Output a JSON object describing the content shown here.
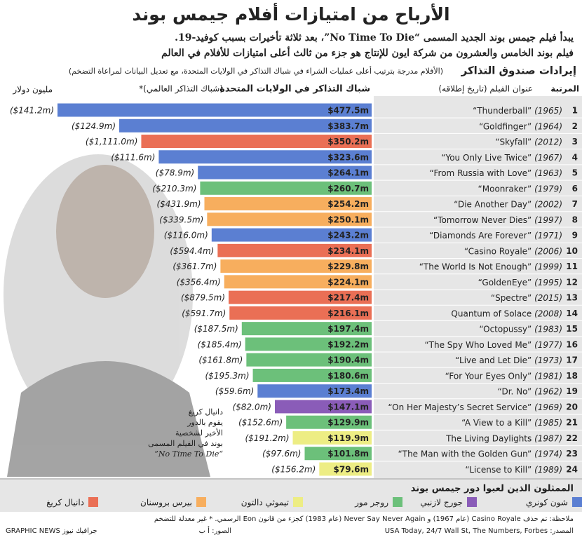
{
  "chart_data": {
    "type": "bar",
    "title": "الأرباح من امتيازات أفلام جيمس بوند",
    "subtitle": [
      "يبدأ فيلم جيمس بوند الجديد المسمى “No Time To Die”، بعد ثلاثة تأخيرات بسبب كوفيد-19.",
      "فيلم بوند الخامس والعشرون من شركة ايون للإنتاج هو جزء من ثالث أعلى امتيازات للأفلام في العالم"
    ],
    "section_title": "إيرادات صندوق التذاكر",
    "section_note": "(الأفلام مدرجة بترتيب أعلى عمليات الشراء في شباك التذاكر في الولايات المتحدة، مع تعديل البيانات لمراعاة التضخم)",
    "unit": "مليون دولار",
    "value_header": "شباك التذاكر في الولايات المتحدة",
    "worldwide_header": "(شباك التذاكر العالمي)*",
    "title_header": "عنوان الفيلم (تاريخ إطلاقه)",
    "rank_header": "المرتبة",
    "ranks": [
      "1",
      "2",
      "3",
      "4",
      "5",
      "6",
      "7",
      "8",
      "9",
      "10",
      "11",
      "12",
      "13",
      "14",
      "15",
      "16",
      "17",
      "18",
      "19",
      "20",
      "21",
      "22",
      "23",
      "24"
    ],
    "categories": [
      "“Thunderball”",
      "“Goldfinger”",
      "“Skyfall”",
      "“You Only Live Twice”",
      "“From Russia with Love”",
      "“Moonraker”",
      "“Die Another Day”",
      "“Tomorrow Never Dies”",
      "“Diamonds Are Forever”",
      "“Casino Royale”",
      "“The World Is Not Enough”",
      "“GoldenEye”",
      "“Spectre”",
      "Quantum of Solace",
      "“Octopussy”",
      "“The Spy Who Loved Me”",
      "“Live and Let Die”",
      "“For Your Eyes Only”",
      "“Dr. No”",
      "“On Her Majesty’s Secret Service”",
      "“A View to a Kill”",
      "The Living Daylights",
      "“The Man with the Golden Gun”",
      "“License to Kill”"
    ],
    "years": [
      "(1965)",
      "(1964)",
      "(2012)",
      "(1967)",
      "(1963)",
      "(1979)",
      "(2002)",
      "(1997)",
      "(1971)",
      "(2006)",
      "(1999)",
      "(1995)",
      "(2015)",
      "(2008)",
      "(1983)",
      "(1977)",
      "(1973)",
      "(1981)",
      "(1962)",
      "(1969)",
      "(1985)",
      "(1987)",
      "(1974)",
      "(1989)"
    ],
    "values": [
      477.5,
      383.7,
      350.2,
      323.6,
      264.1,
      260.7,
      254.2,
      250.1,
      243.2,
      234.1,
      229.8,
      224.1,
      217.4,
      216.1,
      197.4,
      192.2,
      190.4,
      180.6,
      173.4,
      147.1,
      129.9,
      119.9,
      101.8,
      79.6
    ],
    "value_labels": [
      "$477.5m",
      "$383.7m",
      "$350.2m",
      "$323.6m",
      "$264.1m",
      "$260.7m",
      "$254.2m",
      "$250.1m",
      "$243.2m",
      "$234.1m",
      "$229.8m",
      "$224.1m",
      "$217.4m",
      "$216.1m",
      "$197.4m",
      "$192.2m",
      "$190.4m",
      "$180.6m",
      "$173.4m",
      "$147.1m",
      "$129.9m",
      "$119.9m",
      "$101.8m",
      "$79.6m"
    ],
    "worldwide": [
      141.2,
      124.9,
      1111.0,
      111.6,
      78.9,
      210.3,
      431.9,
      339.5,
      116.0,
      594.4,
      361.7,
      356.4,
      879.5,
      591.7,
      187.5,
      185.4,
      161.8,
      195.3,
      59.6,
      82.0,
      152.6,
      191.2,
      97.6,
      156.2
    ],
    "worldwide_labels": [
      "($141.2m)",
      "($124.9m)",
      "($1,111.0m)",
      "($111.6m)",
      "($78.9m)",
      "($210.3m)",
      "($431.9m)",
      "($339.5m)",
      "($116.0m)",
      "($594.4m)",
      "($361.7m)",
      "($356.4m)",
      "($879.5m)",
      "($591.7m)",
      "($187.5m)",
      "($185.4m)",
      "($161.8m)",
      "($195.3m)",
      "($59.6m)",
      "($82.0m)",
      "($152.6m)",
      "($191.2m)",
      "($97.6m)",
      "($156.2m)"
    ],
    "colors": [
      "#5b7fd2",
      "#5b7fd2",
      "#ea6f55",
      "#5b7fd2",
      "#5b7fd2",
      "#6cc07a",
      "#f7ae5e",
      "#f7ae5e",
      "#5b7fd2",
      "#ea6f55",
      "#f7ae5e",
      "#f7ae5e",
      "#ea6f55",
      "#ea6f55",
      "#6cc07a",
      "#6cc07a",
      "#6cc07a",
      "#6cc07a",
      "#5b7fd2",
      "#8a5cb8",
      "#6cc07a",
      "#eded84",
      "#6cc07a",
      "#eded84"
    ],
    "annotation": [
      "دانيال كريغ",
      "يقوم بالدور",
      "الأخير لشخصية",
      "بوند في الفيلم المسمى",
      "“No Time To Die”"
    ],
    "legend_title": "الممثلون الذين لعبوا دور جيمس بوند",
    "legend": [
      {
        "name": "شون كونري",
        "color": "#5b7fd2"
      },
      {
        "name": "جورج لازنبي",
        "color": "#8a5cb8"
      },
      {
        "name": "روجر مور",
        "color": "#6cc07a"
      },
      {
        "name": "تيموثي دالتون",
        "color": "#eded84"
      },
      {
        "name": "بيرس بروسنان",
        "color": "#f7ae5e"
      },
      {
        "name": "دانيال كريغ",
        "color": "#ea6f55"
      }
    ],
    "note": "ملاحظة: تم حذف Casino Royale (عام 1967) و Never Say Never Again (عام 1983) كجزء من قانون Eon الرسمي. * غير معدلة للتضخم",
    "source": "المصدر: USA Today, 24/7 Wall St, The Numbers, Forbes",
    "photo_credit": "الصور: أ ب",
    "credit": "GRAPHIC NEWS جرافيك نيوز"
  }
}
